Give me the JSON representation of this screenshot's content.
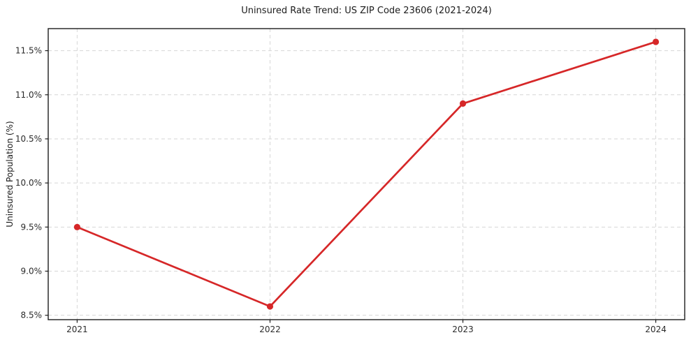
{
  "chart_data": {
    "type": "line",
    "title": "Uninsured Rate Trend: US ZIP Code 23606 (2021-2024)",
    "xlabel": "",
    "ylabel": "Uninsured Population (%)",
    "x": [
      2021,
      2022,
      2023,
      2024
    ],
    "x_tick_labels": [
      "2021",
      "2022",
      "2023",
      "2024"
    ],
    "values": [
      9.5,
      8.6,
      10.9,
      11.6
    ],
    "y_ticks": {
      "values": [
        8.5,
        9.0,
        9.5,
        10.0,
        10.5,
        11.0,
        11.5
      ],
      "labels": [
        "8.5%",
        "9.0%",
        "9.5%",
        "10.0%",
        "10.5%",
        "11.0%",
        "11.5%"
      ]
    },
    "xlim": [
      2020.85,
      2024.15
    ],
    "ylim": [
      8.45,
      11.75
    ],
    "grid": true,
    "grid_style": "dashed",
    "legend_position": "none",
    "colors": {
      "line": "#d62728",
      "marker": "#d62728",
      "grid": "#d6d6d6",
      "spine": "#1c1c1c",
      "tick_text": "#2b2b2b",
      "background": "#ffffff"
    }
  }
}
